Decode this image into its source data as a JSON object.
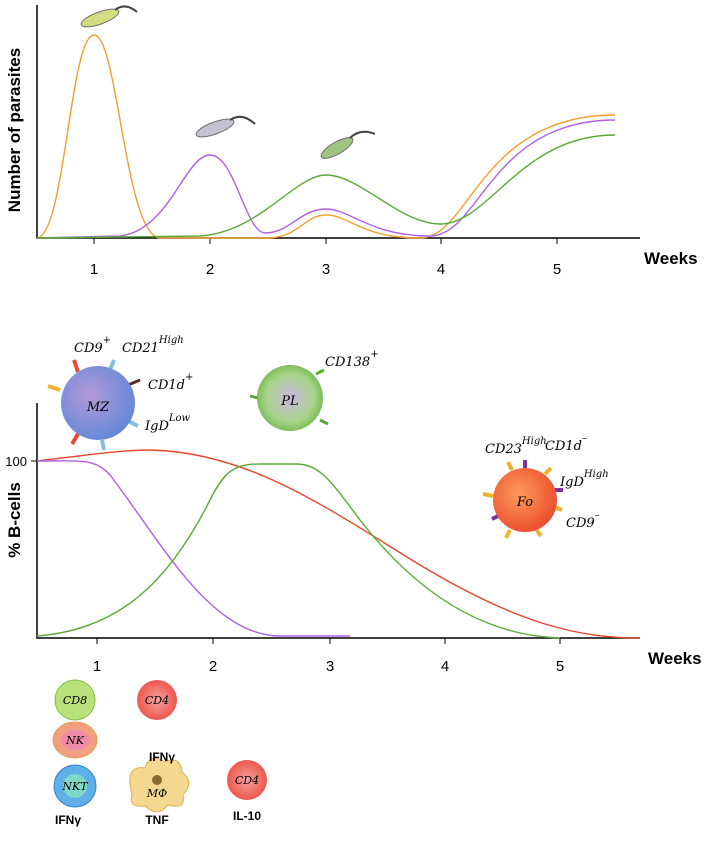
{
  "top_panel": {
    "y_axis_label": "Number of parasites",
    "x_axis_label": "Weeks",
    "x_tick_labels": [
      "1",
      "2",
      "3",
      "4",
      "5"
    ]
  },
  "bottom_panel": {
    "y_axis_label": "% B-cells",
    "x_axis_label": "Weeks",
    "x_tick_labels": [
      "1",
      "2",
      "3",
      "4",
      "5"
    ],
    "y_tick_labels": [
      "100"
    ]
  },
  "b_cells": [
    {
      "label": "MZ",
      "markers": [
        {
          "name": "CD9",
          "sup": "+"
        },
        {
          "name": "CD21",
          "sup": "High"
        },
        {
          "name": "CD1d",
          "sup": "+"
        },
        {
          "name": "IgD",
          "sup": "Low"
        }
      ]
    },
    {
      "label": "PL",
      "markers": [
        {
          "name": "CD138",
          "sup": "+"
        }
      ]
    },
    {
      "label": "Fo",
      "markers": [
        {
          "name": "CD23",
          "sup": "High"
        },
        {
          "name": "CD1d",
          "sup": "–"
        },
        {
          "name": "IgD",
          "sup": "High"
        },
        {
          "name": "CD9",
          "sup": "–"
        }
      ]
    }
  ],
  "immune_cells": [
    {
      "label": "CD8"
    },
    {
      "label": "NK"
    },
    {
      "label": "NKT"
    },
    {
      "label": "CD4"
    },
    {
      "label": "MΦ"
    },
    {
      "label": "CD4"
    }
  ],
  "cytokines": [
    "IFNγ",
    "IFNγ",
    "TNF",
    "IL-10"
  ]
}
